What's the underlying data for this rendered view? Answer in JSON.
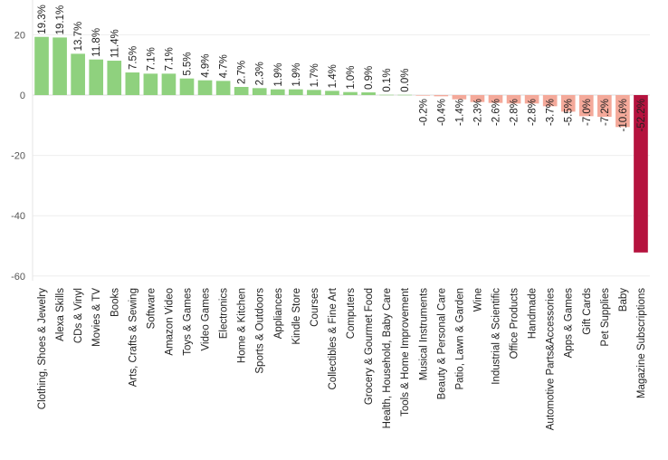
{
  "chart_data": {
    "type": "bar",
    "title": "",
    "xlabel": "",
    "ylabel": "",
    "ylim": [
      -66,
      22
    ],
    "yticks": [
      20,
      0,
      -20,
      -40,
      -60
    ],
    "grid": true,
    "legend": "none",
    "colors": {
      "positive": "#8fd17e",
      "negative_light": "#f4a99a",
      "negative_strong": "#b5123e",
      "gridline": "#eeeeee",
      "zero_line": "#dddddd"
    },
    "categories": [
      "Clothing, Shoes & Jewelry",
      "Alexa Skills",
      "CDs & Vinyl",
      "Movies & TV",
      "Books",
      "Arts, Crafts & Sewing",
      "Software",
      "Amazon Video",
      "Toys & Games",
      "Video Games",
      "Electronics",
      "Home & Kitchen",
      "Sports & Outdoors",
      "Appliances",
      "Kindle Store",
      "Courses",
      "Collectibles & Fine Art",
      "Computers",
      "Grocery & Gourmet Food",
      "Health, Household, Baby Care",
      "Tools & Home Improvement",
      "Musical Instruments",
      "Beauty & Personal Care",
      "Patio, Lawn & Garden",
      "Wine",
      "Industrial & Scientific",
      "Office Products",
      "Handmade",
      "Automotive Parts&Accessories",
      "Apps & Games",
      "Gift Cards",
      "Pet Supplies",
      "Baby",
      "Magazine Subscriptions"
    ],
    "values": [
      19.3,
      19.1,
      13.7,
      11.8,
      11.4,
      7.5,
      7.1,
      7.1,
      5.5,
      4.9,
      4.7,
      2.7,
      2.3,
      1.9,
      1.9,
      1.7,
      1.4,
      1.0,
      0.9,
      0.1,
      0.0,
      -0.2,
      -0.4,
      -1.4,
      -2.3,
      -2.6,
      -2.8,
      -2.8,
      -3.7,
      -5.5,
      -7.0,
      -7.2,
      -10.6,
      -52.2
    ],
    "labels": [
      "19.3%",
      "19.1%",
      "13.7%",
      "11.8%",
      "11.4%",
      "7.5%",
      "7.1%",
      "7.1%",
      "5.5%",
      "4.9%",
      "4.7%",
      "2.7%",
      "2.3%",
      "1.9%",
      "1.9%",
      "1.7%",
      "1.4%",
      "1.0%",
      "0.9%",
      "0.1%",
      "0.0%",
      "-0.2%",
      "-0.4%",
      "-1.4%",
      "-2.3%",
      "-2.6%",
      "-2.8%",
      "-2.8%",
      "-3.7%",
      "-5.5%",
      "-7.0%",
      "-7.2%",
      "-10.6%",
      "-52.2%"
    ]
  }
}
